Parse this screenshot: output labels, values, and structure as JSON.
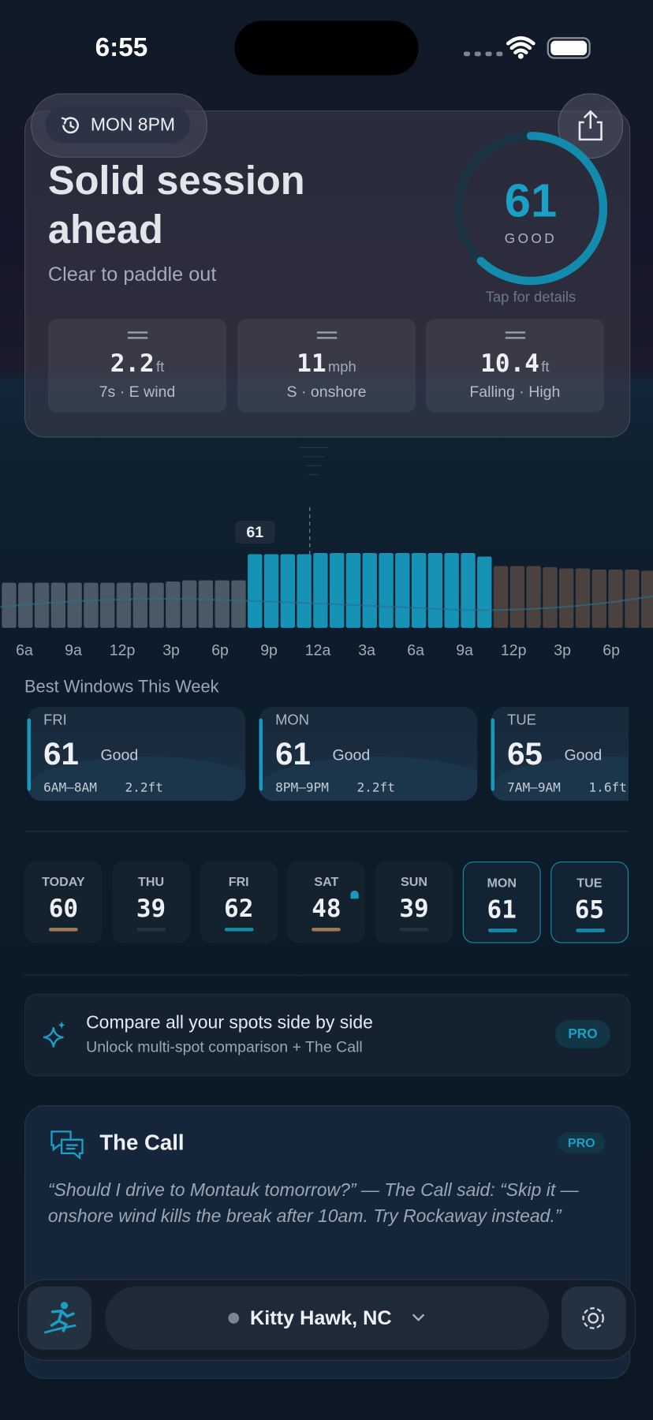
{
  "status_bar": {
    "time": "6:55"
  },
  "header": {
    "time_chip": "MON 8PM",
    "title": "Solid session ahead",
    "subtitle": "Clear to paddle out"
  },
  "score": {
    "value": 61,
    "label": "GOOD",
    "hint": "Tap for details"
  },
  "metrics": [
    {
      "value": 2.2,
      "unit": "ft",
      "detail": "7s · E wind"
    },
    {
      "value": 11,
      "unit": "mph",
      "detail": "S · onshore"
    },
    {
      "value": 10.4,
      "unit": "ft",
      "detail": "Falling · High"
    }
  ],
  "timeline": {
    "marker_label": "61",
    "segments": [
      {
        "color": "#7f8a98",
        "values": [
          38,
          38,
          38,
          38,
          38,
          38,
          38,
          38,
          38,
          38,
          39,
          40,
          40,
          40,
          40
        ]
      },
      {
        "color": "#1699bd",
        "values": [
          62,
          62,
          62,
          62,
          63,
          63,
          63,
          63,
          63,
          63,
          63,
          63,
          63,
          63,
          60
        ]
      },
      {
        "color": "#7d6150",
        "values": [
          52,
          52,
          52,
          51,
          50,
          50,
          49,
          49,
          49,
          48
        ]
      }
    ],
    "x_labels": [
      "6a",
      "9a",
      "12p",
      "3p",
      "6p",
      "9p",
      "12a",
      "3a",
      "6a",
      "9a",
      "12p",
      "3p",
      "6p"
    ]
  },
  "best_windows": {
    "title": "Best Windows This Week",
    "items": [
      {
        "day": "FRI",
        "score": 61,
        "rating": "Good",
        "time": "6AM–8AM",
        "height": "2.2ft"
      },
      {
        "day": "MON",
        "score": 61,
        "rating": "Good",
        "time": "8PM–9PM",
        "height": "2.2ft"
      },
      {
        "day": "TUE",
        "score": 65,
        "rating": "Good",
        "time": "7AM–9AM",
        "height": "1.6ft"
      }
    ]
  },
  "days": [
    {
      "day": "TODAY",
      "score": 60,
      "color": "#a07656"
    },
    {
      "day": "THU",
      "score": 39,
      "color": "#26323f"
    },
    {
      "day": "FRI",
      "score": 62,
      "color": "#1689ab"
    },
    {
      "day": "SAT",
      "score": 48,
      "color": "#a07656"
    },
    {
      "day": "SUN",
      "score": 39,
      "color": "#26323f"
    },
    {
      "day": "MON",
      "score": 61,
      "color": "#1689ab"
    },
    {
      "day": "TUE",
      "score": 65,
      "color": "#1689ab"
    }
  ],
  "promo": {
    "title": "Compare all your spots side by side",
    "subtitle": "Unlock multi-spot comparison + The Call",
    "badge": "PRO"
  },
  "the_call": {
    "title": "The Call",
    "badge": "PRO",
    "quote": "“Should I drive to Montauk tomorrow?” — The Call said: “Skip it — onshore wind kills the break after 10am. Try Rockaway instead.”"
  },
  "nav": {
    "location": "Kitty Hawk, NC"
  }
}
